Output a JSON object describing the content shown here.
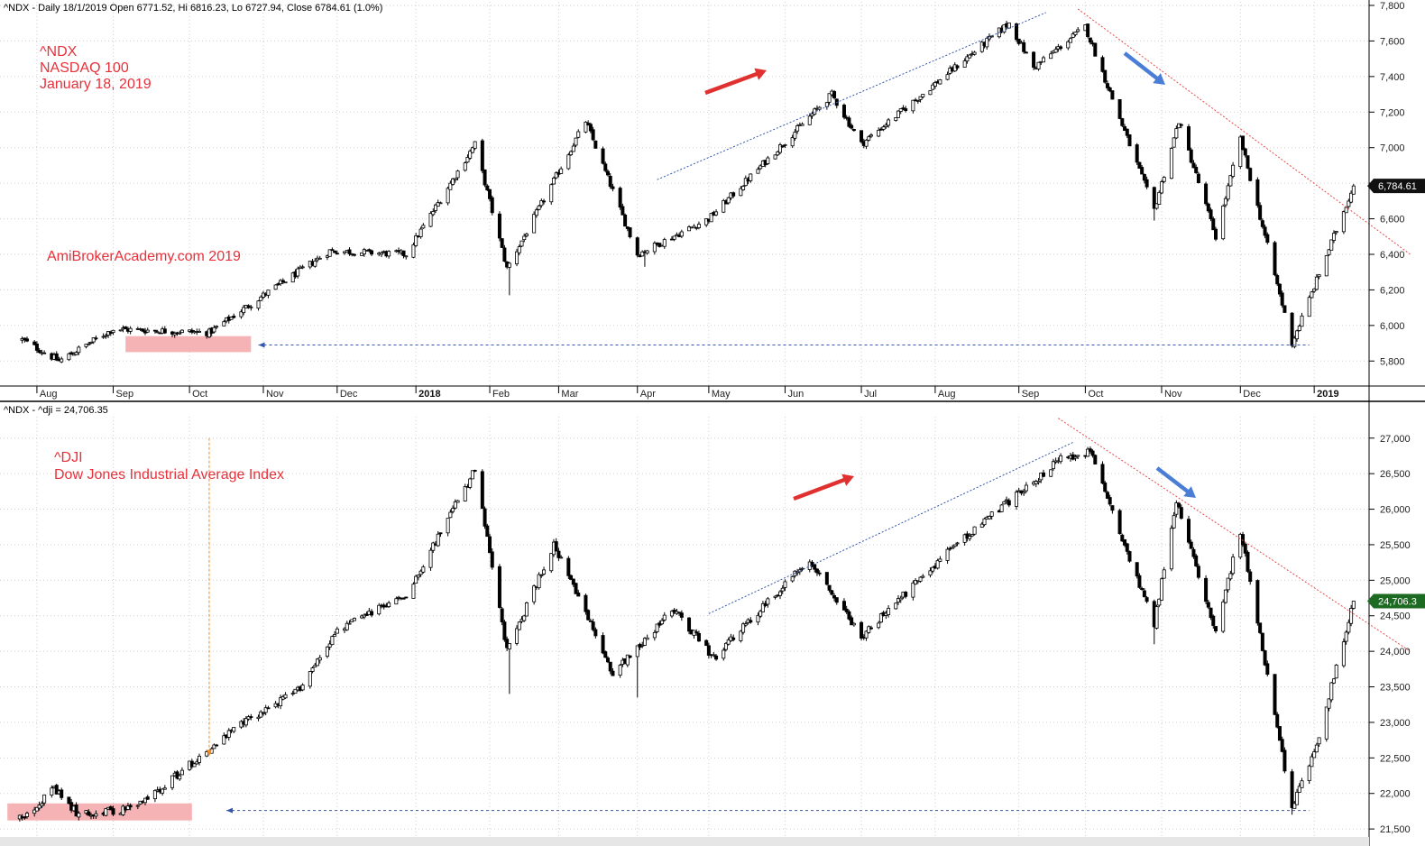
{
  "colors": {
    "annotation": "#e8313a",
    "trendline_up": "#3355aa",
    "trendline_down": "#e84a4a",
    "arrow_red": "#e03030",
    "arrow_blue": "#4a7ed6",
    "zone": "#f4a6a8",
    "tag_ndx": "#111111",
    "tag_dji": "#1d6b22"
  },
  "header": {
    "ndx": "^NDX - Daily 18/1/2019 Open 6771.52, Hi 6816.23, Lo 6727.94, Close 6784.61 (1.0%)",
    "dji": "^NDX - ^dji = 24,706.35"
  },
  "annotations": {
    "ndx": [
      "^NDX",
      "NASDAQ 100",
      "January 18, 2019"
    ],
    "site": "AmiBrokerAcademy.com  2019",
    "dji": [
      "^DJI",
      "Dow Jones Industrial Average Index"
    ]
  },
  "x_axis_labels": [
    {
      "label": "Aug",
      "bold": false
    },
    {
      "label": "Sep",
      "bold": false
    },
    {
      "label": "Oct",
      "bold": false
    },
    {
      "label": "Nov",
      "bold": false
    },
    {
      "label": "Dec",
      "bold": false
    },
    {
      "label": "2018",
      "bold": true
    },
    {
      "label": "Feb",
      "bold": false
    },
    {
      "label": "Mar",
      "bold": false
    },
    {
      "label": "Apr",
      "bold": false
    },
    {
      "label": "May",
      "bold": false
    },
    {
      "label": "Jun",
      "bold": false
    },
    {
      "label": "Jul",
      "bold": false
    },
    {
      "label": "Aug",
      "bold": false
    },
    {
      "label": "Sep",
      "bold": false
    },
    {
      "label": "Oct",
      "bold": false
    },
    {
      "label": "Nov",
      "bold": false
    },
    {
      "label": "Dec",
      "bold": false
    },
    {
      "label": "2019",
      "bold": true
    }
  ],
  "chart_data": [
    {
      "type": "candlestick",
      "series_name": "^NDX",
      "ylim": [
        5700,
        7800
      ],
      "y_ticks": [
        "5,800",
        "6,000",
        "6,200",
        "6,400",
        "6,600",
        "6,800",
        "7,000",
        "7,200",
        "7,400",
        "7,600",
        "7,800"
      ],
      "last_value_label": "6,784.61",
      "last_value": 6784.61,
      "anchors": [
        {
          "x": "2017-07-26",
          "y": 5920
        },
        {
          "x": "2017-08-10",
          "y": 5800
        },
        {
          "x": "2017-09-01",
          "y": 5980
        },
        {
          "x": "2017-10-10",
          "y": 5960
        },
        {
          "x": "2017-10-31",
          "y": 6160
        },
        {
          "x": "2017-11-28",
          "y": 6420
        },
        {
          "x": "2017-12-29",
          "y": 6400
        },
        {
          "x": "2018-01-26",
          "y": 7020
        },
        {
          "x": "2018-02-08",
          "y": 6320
        },
        {
          "x": "2018-03-12",
          "y": 7150
        },
        {
          "x": "2018-04-02",
          "y": 6400
        },
        {
          "x": "2018-05-01",
          "y": 6600
        },
        {
          "x": "2018-06-20",
          "y": 7300
        },
        {
          "x": "2018-07-02",
          "y": 7020
        },
        {
          "x": "2018-08-31",
          "y": 7700
        },
        {
          "x": "2018-09-10",
          "y": 7450
        },
        {
          "x": "2018-10-01",
          "y": 7680
        },
        {
          "x": "2018-10-29",
          "y": 6650
        },
        {
          "x": "2018-11-08",
          "y": 7150
        },
        {
          "x": "2018-11-23",
          "y": 6500
        },
        {
          "x": "2018-12-03",
          "y": 7050
        },
        {
          "x": "2018-12-24",
          "y": 5900
        },
        {
          "x": "2019-01-18",
          "y": 6784.61
        }
      ],
      "spikes": [
        {
          "x": "2018-02-09",
          "low": 6170
        },
        {
          "x": "2018-04-05",
          "low": 6330
        },
        {
          "x": "2018-10-29",
          "low": 6590
        },
        {
          "x": "2018-12-24",
          "low": 5900
        }
      ],
      "support_zone": {
        "x_start": "2017-09-06",
        "x_end": "2017-10-27",
        "y_low": 5850,
        "y_high": 5940
      },
      "support_line": {
        "x_start": "2017-10-30",
        "x_end": "2018-12-31",
        "y": 5890
      },
      "trendline_up": [
        {
          "x": "2018-04-10",
          "y": 6820
        },
        {
          "x": "2018-09-15",
          "y": 7760
        }
      ],
      "trendline_down": [
        {
          "x": "2018-09-28",
          "y": 7780
        },
        {
          "x": "2019-02-10",
          "y": 6400
        }
      ]
    },
    {
      "type": "candlestick",
      "series_name": "^DJI",
      "ylim": [
        21400,
        27200
      ],
      "y_ticks": [
        "21,500",
        "22,000",
        "22,500",
        "23,000",
        "23,500",
        "24,000",
        "24,500",
        "25,000",
        "25,500",
        "26,000",
        "26,500",
        "27,000"
      ],
      "last_value_label": "24,706.3",
      "last_value": 24706.35,
      "anchors": [
        {
          "x": "2017-07-25",
          "y": 21650
        },
        {
          "x": "2017-08-08",
          "y": 22050
        },
        {
          "x": "2017-08-18",
          "y": 21700
        },
        {
          "x": "2017-09-10",
          "y": 21800
        },
        {
          "x": "2017-10-02",
          "y": 22400
        },
        {
          "x": "2017-10-24",
          "y": 23000
        },
        {
          "x": "2017-11-15",
          "y": 23450
        },
        {
          "x": "2017-12-01",
          "y": 24300
        },
        {
          "x": "2017-12-29",
          "y": 24800
        },
        {
          "x": "2018-01-26",
          "y": 26550
        },
        {
          "x": "2018-02-08",
          "y": 24000
        },
        {
          "x": "2018-02-27",
          "y": 25500
        },
        {
          "x": "2018-03-23",
          "y": 23700
        },
        {
          "x": "2018-04-17",
          "y": 24600
        },
        {
          "x": "2018-05-03",
          "y": 23900
        },
        {
          "x": "2018-06-11",
          "y": 25300
        },
        {
          "x": "2018-07-02",
          "y": 24200
        },
        {
          "x": "2018-08-09",
          "y": 25500
        },
        {
          "x": "2018-09-21",
          "y": 26700
        },
        {
          "x": "2018-10-03",
          "y": 26800
        },
        {
          "x": "2018-10-29",
          "y": 24400
        },
        {
          "x": "2018-11-07",
          "y": 26100
        },
        {
          "x": "2018-11-23",
          "y": 24300
        },
        {
          "x": "2018-12-03",
          "y": 25700
        },
        {
          "x": "2018-12-24",
          "y": 21800
        },
        {
          "x": "2019-01-03",
          "y": 22700
        },
        {
          "x": "2019-01-18",
          "y": 24706.35
        }
      ],
      "spikes": [
        {
          "x": "2018-02-09",
          "low": 23400
        },
        {
          "x": "2018-04-02",
          "low": 23350
        },
        {
          "x": "2018-10-29",
          "low": 24100
        },
        {
          "x": "2018-12-24",
          "low": 21700
        }
      ],
      "support_zone": {
        "x_start": "2017-07-20",
        "x_end": "2017-10-03",
        "y_low": 21620,
        "y_high": 21860
      },
      "support_line": {
        "x_start": "2017-10-17",
        "x_end": "2018-12-31",
        "y": 21760
      },
      "trendline_up": [
        {
          "x": "2018-05-01",
          "y": 24530
        },
        {
          "x": "2018-09-26",
          "y": 26940
        }
      ],
      "trendline_down": [
        {
          "x": "2018-09-20",
          "y": 27280
        },
        {
          "x": "2019-02-10",
          "y": 24000
        }
      ],
      "vertical_marker": {
        "x": "2017-10-10",
        "y_top": 27000,
        "y_bottom": 22600
      }
    }
  ]
}
